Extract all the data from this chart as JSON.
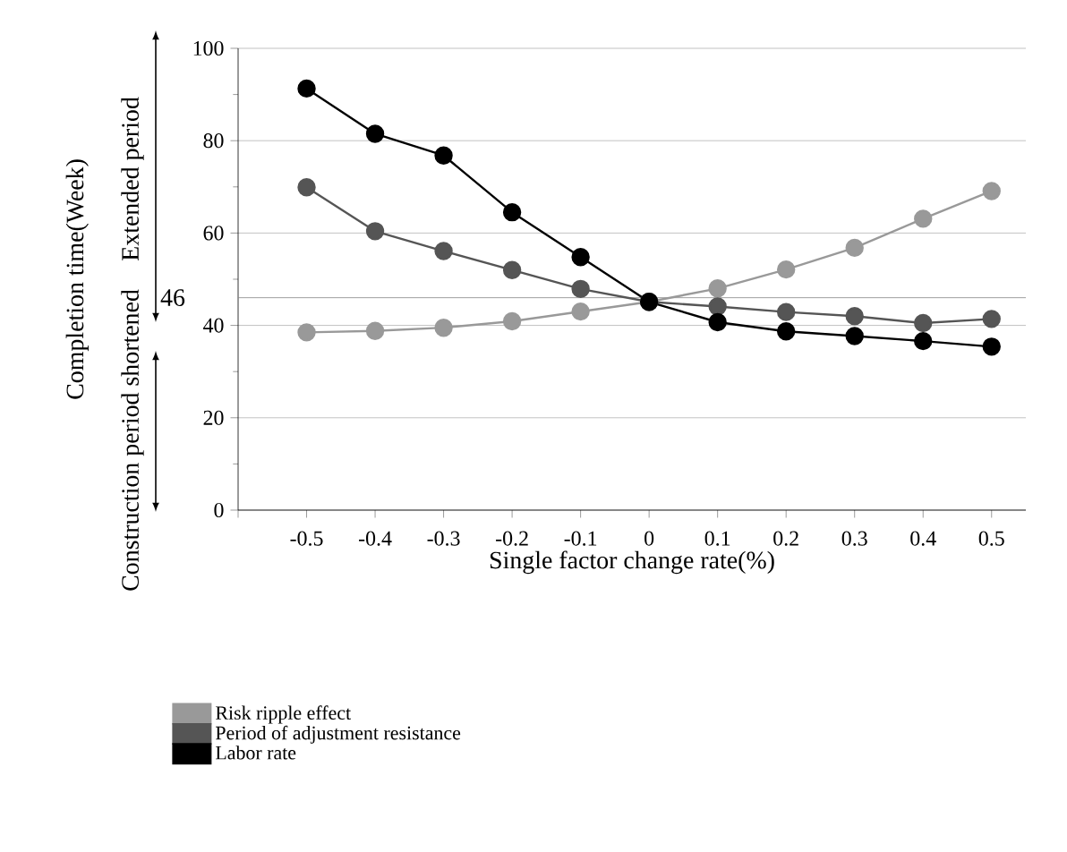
{
  "chart_data": {
    "type": "line",
    "xlabel": "Single factor change rate(%)",
    "ylabel": "Completion time(Week)",
    "x": [
      -0.5,
      -0.4,
      -0.3,
      -0.2,
      -0.1,
      0,
      0.1,
      0.2,
      0.3,
      0.4,
      0.5
    ],
    "series": [
      {
        "name": "Risk ripple effect",
        "color": "#999999",
        "values": [
          38.5,
          38.8,
          39.5,
          40.9,
          43,
          45.1,
          48,
          52.1,
          56.8,
          63.1,
          69.1
        ]
      },
      {
        "name": "Period of adjustment resistance",
        "color": "#555555",
        "values": [
          69.9,
          60.4,
          56.1,
          52,
          47.9,
          45.1,
          44.1,
          42.9,
          42,
          40.5,
          41.4
        ]
      },
      {
        "name": "Labor rate",
        "color": "#000000",
        "values": [
          91.3,
          81.5,
          76.8,
          64.5,
          54.8,
          45.1,
          40.7,
          38.7,
          37.7,
          36.6,
          35.4
        ]
      }
    ],
    "xlim": [
      -0.6,
      0.55
    ],
    "ylim": [
      0,
      100
    ],
    "xticks": [
      {
        "value": -0.6,
        "label": null
      },
      -0.5,
      -0.4,
      -0.3,
      -0.2,
      -0.1,
      0,
      0.1,
      0.2,
      0.3,
      0.4,
      0.5
    ],
    "yticks": [
      0,
      20,
      40,
      60,
      80,
      100
    ],
    "ref_lines": [
      {
        "axis": "y",
        "value": 46,
        "label": "46",
        "color": "#888888"
      }
    ],
    "annotations": [
      "Extended period",
      "Construction period shortened"
    ],
    "grid": "y",
    "legend": "bottom",
    "marker": "circle",
    "line_style": "solid"
  }
}
